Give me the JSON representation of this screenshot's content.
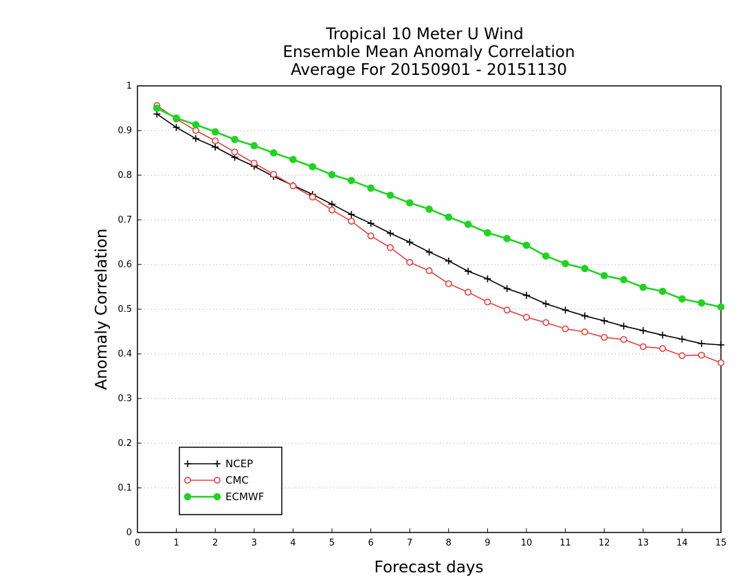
{
  "chart_data": {
    "type": "line",
    "title": [
      "Tropical 10 Meter U Wind",
      "Ensemble Mean Anomaly Correlation",
      "Average For 20150901 - 20151130"
    ],
    "xlabel": "Forecast days",
    "ylabel": "Anomaly Correlation",
    "xlim": [
      0,
      15
    ],
    "ylim": [
      0,
      1
    ],
    "xticks": [
      0,
      1,
      2,
      3,
      4,
      5,
      6,
      7,
      8,
      9,
      10,
      11,
      12,
      13,
      14,
      15
    ],
    "yticks": [
      0,
      0.1,
      0.2,
      0.3,
      0.4,
      0.5,
      0.6,
      0.7,
      0.8,
      0.9,
      1
    ],
    "grid": "horizontal-dotted",
    "legend": "bottom-left",
    "x": [
      0.5,
      1,
      1.5,
      2,
      2.5,
      3,
      3.5,
      4,
      4.5,
      5,
      5.5,
      6,
      6.5,
      7,
      7.5,
      8,
      8.5,
      9,
      9.5,
      10,
      10.5,
      11,
      11.5,
      12,
      12.5,
      13,
      13.5,
      14,
      14.5,
      15
    ],
    "series": [
      {
        "name": "NCEP",
        "color": "#000000",
        "marker": "plus",
        "values": [
          0.937,
          0.907,
          0.882,
          0.863,
          0.84,
          0.82,
          0.797,
          0.777,
          0.757,
          0.735,
          0.712,
          0.692,
          0.67,
          0.65,
          0.628,
          0.608,
          0.585,
          0.568,
          0.546,
          0.531,
          0.512,
          0.498,
          0.485,
          0.474,
          0.462,
          0.452,
          0.442,
          0.433,
          0.423,
          0.42
        ]
      },
      {
        "name": "CMC",
        "color": "#e8403c",
        "marker": "open-circle",
        "values": [
          0.956,
          0.926,
          0.9,
          0.877,
          0.852,
          0.827,
          0.802,
          0.776,
          0.751,
          0.722,
          0.697,
          0.664,
          0.638,
          0.605,
          0.586,
          0.557,
          0.538,
          0.516,
          0.498,
          0.482,
          0.47,
          0.456,
          0.449,
          0.437,
          0.432,
          0.416,
          0.412,
          0.396,
          0.397,
          0.38
        ]
      },
      {
        "name": "ECMWF",
        "color": "#1fd41f",
        "marker": "filled-circle",
        "values": [
          0.95,
          0.928,
          0.913,
          0.897,
          0.88,
          0.866,
          0.85,
          0.835,
          0.819,
          0.801,
          0.788,
          0.771,
          0.755,
          0.738,
          0.724,
          0.706,
          0.69,
          0.671,
          0.658,
          0.643,
          0.619,
          0.602,
          0.591,
          0.575,
          0.566,
          0.549,
          0.54,
          0.523,
          0.514,
          0.505
        ]
      }
    ]
  }
}
